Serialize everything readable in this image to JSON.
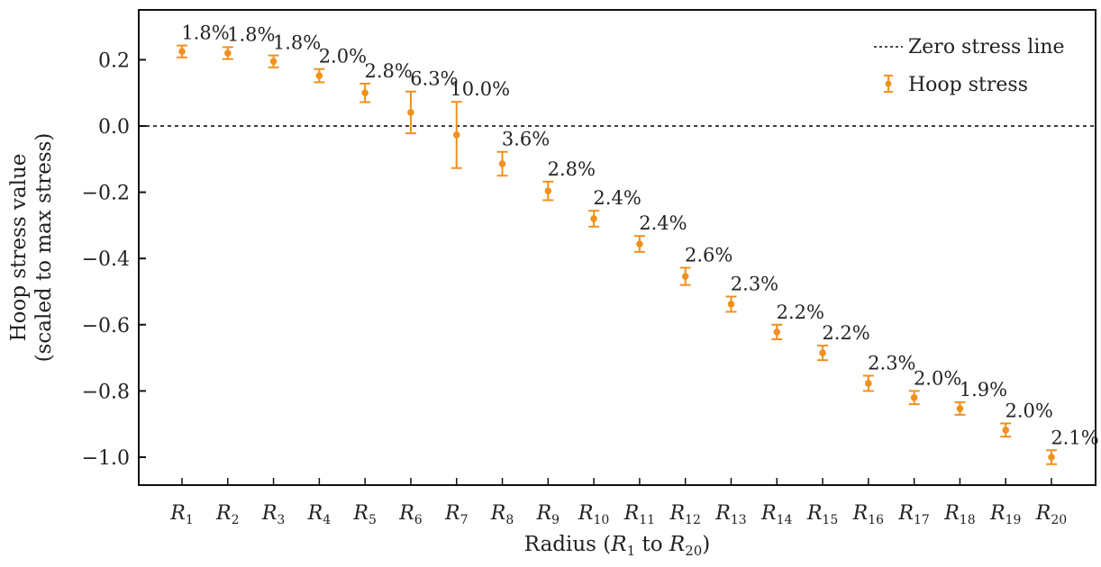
{
  "chart_data": {
    "type": "scatter",
    "title": "",
    "xlabel": "Radius (R1 to R20)",
    "xlabel_parts": {
      "prefix": "Radius (",
      "r": "R",
      "sub1": "1",
      "mid": " to ",
      "sub2": "20",
      "suffix": ")"
    },
    "ylabel_line1": "Hoop stress value",
    "ylabel_line2": "(scaled to max stress)",
    "ylim": [
      -1.084,
      0.35
    ],
    "yticks": [
      0.2,
      0.0,
      -0.2,
      -0.4,
      -0.6,
      -0.8,
      -1.0
    ],
    "ytick_labels": [
      "0.2",
      "0.0",
      "−0.2",
      "−0.4",
      "−0.6",
      "−0.8",
      "−1.0"
    ],
    "categories": [
      "1",
      "2",
      "3",
      "4",
      "5",
      "6",
      "7",
      "8",
      "9",
      "10",
      "11",
      "12",
      "13",
      "14",
      "15",
      "16",
      "17",
      "18",
      "19",
      "20"
    ],
    "category_prefix": "R",
    "series": [
      {
        "name": "Hoop stress",
        "values": [
          0.225,
          0.22,
          0.195,
          0.152,
          0.1,
          0.041,
          -0.027,
          -0.114,
          -0.196,
          -0.28,
          -0.356,
          -0.454,
          -0.538,
          -0.622,
          -0.685,
          -0.777,
          -0.82,
          -0.853,
          -0.918,
          -1.0
        ],
        "errors": [
          0.018,
          0.018,
          0.018,
          0.02,
          0.028,
          0.063,
          0.1,
          0.036,
          0.028,
          0.024,
          0.024,
          0.026,
          0.023,
          0.022,
          0.022,
          0.023,
          0.02,
          0.019,
          0.02,
          0.021
        ],
        "labels": [
          "1.8%",
          "1.8%",
          "1.8%",
          "2.0%",
          "2.8%",
          "6.3%",
          "10.0%",
          "3.6%",
          "2.8%",
          "2.4%",
          "2.4%",
          "2.6%",
          "2.3%",
          "2.2%",
          "2.2%",
          "2.3%",
          "2.0%",
          "1.9%",
          "2.0%",
          "2.1%"
        ],
        "color": "#f0911e"
      }
    ],
    "reference_line": {
      "name": "Zero stress line",
      "y": 0.0,
      "style": "dotted",
      "color": "#000000"
    },
    "legend": {
      "position": "top-right",
      "entries": [
        "Zero stress line",
        "Hoop stress"
      ]
    },
    "grid": false
  }
}
